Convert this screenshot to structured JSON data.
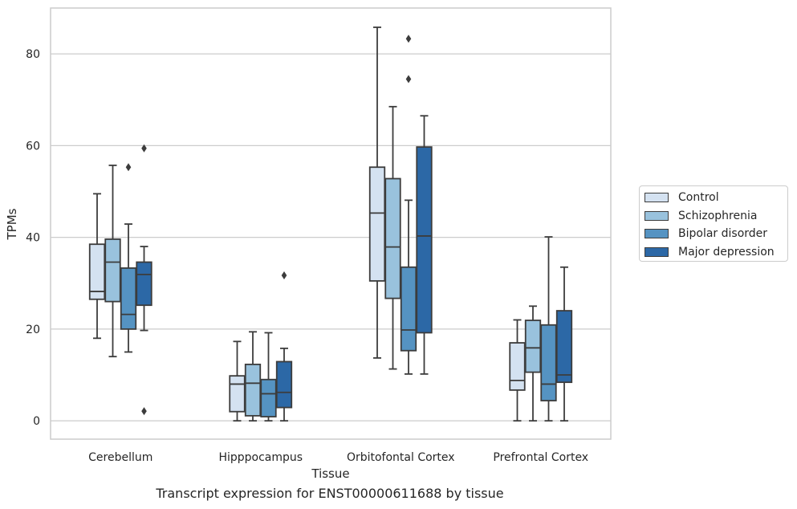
{
  "chart_data": {
    "type": "box",
    "caption": "Transcript expression for ENST00000611688 by tissue",
    "xlabel": "Tissue",
    "ylabel": "TPMs",
    "ylim": [
      -4,
      90
    ],
    "yticks": [
      0,
      20,
      40,
      60,
      80
    ],
    "grid": true,
    "legend_position": "right",
    "categories": [
      "Cerebellum",
      "Hipppocampus",
      "Orbitofontal Cortex",
      "Prefrontal Cortex"
    ],
    "series": [
      {
        "name": "Control",
        "color": "#d4e2f1",
        "boxes": [
          {
            "whisker_low": 18,
            "q1": 26.5,
            "median": 28.2,
            "q3": 38.5,
            "whisker_high": 49.5,
            "outliers": []
          },
          {
            "whisker_low": 0,
            "q1": 2,
            "median": 8,
            "q3": 9.8,
            "whisker_high": 17.3,
            "outliers": []
          },
          {
            "whisker_low": 13.7,
            "q1": 30.5,
            "median": 45.3,
            "q3": 55.3,
            "whisker_high": 85.8,
            "outliers": []
          },
          {
            "whisker_low": 0,
            "q1": 6.7,
            "median": 8.8,
            "q3": 17,
            "whisker_high": 22,
            "outliers": []
          }
        ]
      },
      {
        "name": "Schizophrenia",
        "color": "#99c2dd",
        "boxes": [
          {
            "whisker_low": 14,
            "q1": 26,
            "median": 34.6,
            "q3": 39.6,
            "whisker_high": 55.7,
            "outliers": []
          },
          {
            "whisker_low": 0,
            "q1": 1.1,
            "median": 8.2,
            "q3": 12.3,
            "whisker_high": 19.4,
            "outliers": []
          },
          {
            "whisker_low": 11.3,
            "q1": 26.7,
            "median": 37.9,
            "q3": 52.8,
            "whisker_high": 68.5,
            "outliers": []
          },
          {
            "whisker_low": 0,
            "q1": 10.6,
            "median": 15.9,
            "q3": 21.9,
            "whisker_high": 25,
            "outliers": []
          }
        ]
      },
      {
        "name": "Bipolar disorder",
        "color": "#5593c2",
        "boxes": [
          {
            "whisker_low": 15,
            "q1": 20,
            "median": 23.2,
            "q3": 33.3,
            "whisker_high": 42.9,
            "outliers": [
              55.3
            ]
          },
          {
            "whisker_low": 0,
            "q1": 0.9,
            "median": 5.9,
            "q3": 9,
            "whisker_high": 19.2,
            "outliers": []
          },
          {
            "whisker_low": 10.2,
            "q1": 15.3,
            "median": 19.8,
            "q3": 33.5,
            "whisker_high": 48.1,
            "outliers": [
              74.5,
              83.3
            ]
          },
          {
            "whisker_low": 0,
            "q1": 4.4,
            "median": 8,
            "q3": 20.9,
            "whisker_high": 40.1,
            "outliers": []
          }
        ]
      },
      {
        "name": "Major depression",
        "color": "#2c68a6",
        "boxes": [
          {
            "whisker_low": 19.7,
            "q1": 25.2,
            "median": 31.9,
            "q3": 34.6,
            "whisker_high": 38,
            "outliers": [
              59.4,
              2.1
            ]
          },
          {
            "whisker_low": 0,
            "q1": 2.9,
            "median": 6.2,
            "q3": 12.9,
            "whisker_high": 15.8,
            "outliers": [
              31.7
            ]
          },
          {
            "whisker_low": 10.2,
            "q1": 19.2,
            "median": 40.3,
            "q3": 59.7,
            "whisker_high": 66.5,
            "outliers": []
          },
          {
            "whisker_low": 0,
            "q1": 8.4,
            "median": 10,
            "q3": 24,
            "whisker_high": 33.5,
            "outliers": []
          }
        ]
      }
    ]
  }
}
